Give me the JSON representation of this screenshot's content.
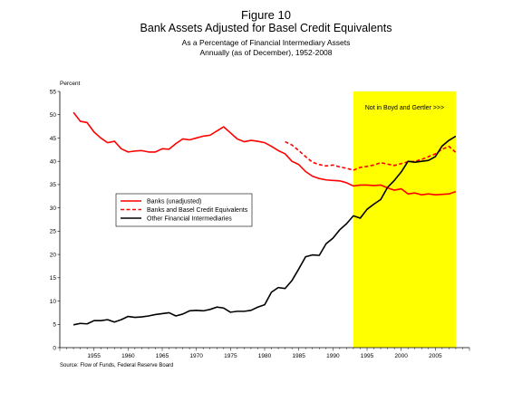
{
  "figure_label": "Figure 10",
  "source": "Source: Flow of Funds, Federal Reserve Board",
  "chart_data": {
    "type": "line",
    "title": "Bank Assets Adjusted for Basel Credit Equivalents",
    "subtitle": [
      "As a Percentage of Financial Intermediary Assets",
      "Annually (as of December), 1952-2008"
    ],
    "ylabel": "Percent",
    "xlabel": "",
    "xlim": [
      1950,
      2010
    ],
    "ylim": [
      0,
      55
    ],
    "yticks": [
      0,
      5,
      10,
      15,
      20,
      25,
      30,
      35,
      40,
      45,
      50,
      55
    ],
    "xticks": [
      1955,
      1960,
      1965,
      1970,
      1975,
      1980,
      1985,
      1990,
      1995,
      2000,
      2005
    ],
    "grid": false,
    "legend_position": "center-left",
    "highlight": {
      "x_from": 1993,
      "x_to": 2008,
      "color": "#ffff00",
      "label": "Not in Boyd and Gertler >>>"
    },
    "series": [
      {
        "name": "Banks (unadjusted)",
        "color": "#ff0000",
        "style": "solid",
        "x": [
          1952,
          1953,
          1954,
          1955,
          1956,
          1957,
          1958,
          1959,
          1960,
          1961,
          1962,
          1963,
          1964,
          1965,
          1966,
          1967,
          1968,
          1969,
          1970,
          1971,
          1972,
          1973,
          1974,
          1975,
          1976,
          1977,
          1978,
          1979,
          1980,
          1981,
          1982,
          1983,
          1984,
          1985,
          1986,
          1987,
          1988,
          1989,
          1990,
          1991,
          1992,
          1993,
          1994,
          1995,
          1996,
          1997,
          1998,
          1999,
          2000,
          2001,
          2002,
          2003,
          2004,
          2005,
          2006,
          2007,
          2008
        ],
        "values": [
          50.5,
          48.6,
          48.3,
          46.3,
          45.0,
          44.0,
          44.3,
          42.7,
          42.0,
          42.2,
          42.3,
          42.0,
          42.0,
          42.7,
          42.6,
          43.8,
          44.8,
          44.6,
          45.0,
          45.4,
          45.6,
          46.5,
          47.4,
          46.1,
          44.8,
          44.2,
          44.5,
          44.3,
          44.0,
          43.2,
          42.3,
          41.6,
          40.0,
          39.3,
          37.8,
          36.8,
          36.3,
          36.0,
          35.9,
          35.8,
          35.4,
          34.7,
          34.9,
          34.9,
          34.8,
          34.9,
          34.3,
          33.8,
          34.1,
          33.0,
          33.2,
          32.8,
          33.0,
          32.8,
          32.9,
          33.0,
          33.5
        ]
      },
      {
        "name": "Banks and Basel Credit Equivalents",
        "color": "#ff0000",
        "style": "dashed",
        "x": [
          1983,
          1984,
          1985,
          1986,
          1987,
          1988,
          1989,
          1990,
          1991,
          1992,
          1993,
          1994,
          1995,
          1996,
          1997,
          1998,
          1999,
          2000,
          2001,
          2002,
          2003,
          2004,
          2005,
          2006,
          2007,
          2008
        ],
        "values": [
          44.2,
          43.5,
          42.3,
          41.0,
          39.8,
          39.3,
          39.0,
          39.2,
          38.8,
          38.5,
          38.1,
          38.7,
          38.9,
          39.2,
          39.7,
          39.4,
          39.1,
          39.5,
          39.9,
          40.0,
          40.4,
          41.0,
          41.6,
          42.6,
          43.2,
          41.9
        ]
      },
      {
        "name": "Other Financial Intermediaries",
        "color": "#000000",
        "style": "solid",
        "x": [
          1952,
          1953,
          1954,
          1955,
          1956,
          1957,
          1958,
          1959,
          1960,
          1961,
          1962,
          1963,
          1964,
          1965,
          1966,
          1967,
          1968,
          1969,
          1970,
          1971,
          1972,
          1973,
          1974,
          1975,
          1976,
          1977,
          1978,
          1979,
          1980,
          1981,
          1982,
          1983,
          1984,
          1985,
          1986,
          1987,
          1988,
          1989,
          1990,
          1991,
          1992,
          1993,
          1994,
          1995,
          1996,
          1997,
          1998,
          1999,
          2000,
          2001,
          2002,
          2003,
          2004,
          2005,
          2006,
          2007,
          2008
        ],
        "values": [
          4.9,
          5.2,
          5.1,
          5.8,
          5.8,
          6.0,
          5.5,
          6.0,
          6.7,
          6.5,
          6.6,
          6.8,
          7.1,
          7.3,
          7.5,
          6.8,
          7.2,
          7.9,
          8.0,
          7.9,
          8.2,
          8.7,
          8.5,
          7.6,
          7.8,
          7.8,
          8.0,
          8.7,
          9.2,
          11.9,
          12.9,
          12.7,
          14.4,
          16.9,
          19.5,
          19.9,
          19.8,
          22.3,
          23.5,
          25.3,
          26.6,
          28.3,
          27.8,
          29.7,
          30.8,
          31.8,
          34.4,
          35.9,
          37.7,
          40.0,
          39.8,
          40.0,
          40.2,
          41.0,
          43.3,
          44.5,
          45.4
        ]
      }
    ]
  }
}
